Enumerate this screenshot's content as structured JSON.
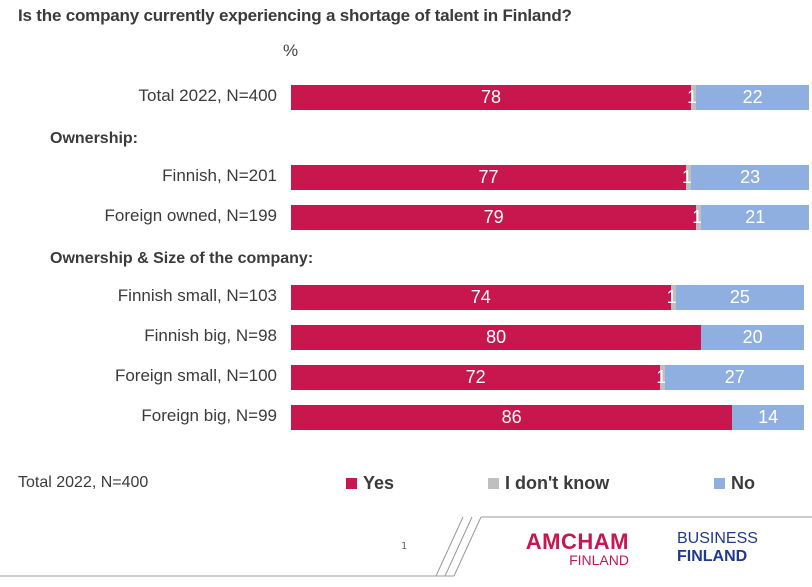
{
  "chart_data": {
    "type": "bar",
    "orientation": "horizontal-stacked-100",
    "title": "Is the company currently experiencing a shortage of talent in Finland?",
    "unit_label": "%",
    "xlim": [
      0,
      100
    ],
    "grid": false,
    "legend_position": "bottom",
    "legend_note": "Total 2022, N=400",
    "series": [
      {
        "name": "Yes",
        "color": "#C8174F"
      },
      {
        "name": "I don't know",
        "color": "#BFBFBF"
      },
      {
        "name": "No",
        "color": "#8EAFE0"
      }
    ],
    "sections": [
      {
        "heading": "",
        "rows": [
          {
            "label": "Total 2022, N=400",
            "values": [
              78,
              1,
              22
            ]
          }
        ]
      },
      {
        "heading": "Ownership:",
        "rows": [
          {
            "label": "Finnish, N=201",
            "values": [
              77,
              1,
              23
            ]
          },
          {
            "label": "Foreign owned, N=199",
            "values": [
              79,
              1,
              21
            ]
          }
        ]
      },
      {
        "heading": "Ownership & Size of the company:",
        "rows": [
          {
            "label": "Finnish small, N=103",
            "values": [
              74,
              1,
              25
            ]
          },
          {
            "label": "Finnish big, N=98",
            "values": [
              80,
              0,
              20
            ]
          },
          {
            "label": "Foreign small, N=100",
            "values": [
              72,
              1,
              27
            ]
          },
          {
            "label": "Foreign big, N=99",
            "values": [
              86,
              0,
              14
            ]
          }
        ]
      }
    ]
  },
  "footer": {
    "page_number": "1",
    "logo_amcham_top": "AMCHAM",
    "logo_amcham_bottom": "FINLAND",
    "logo_bf_top": "BUSINESS",
    "logo_bf_bottom": "FINLAND"
  }
}
